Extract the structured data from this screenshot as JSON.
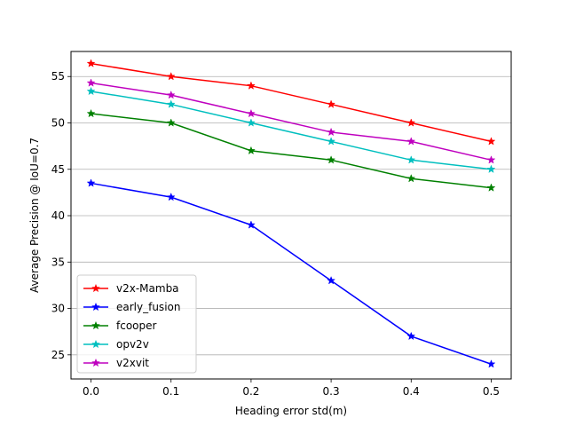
{
  "chart_data": {
    "type": "line",
    "title": "",
    "xlabel": "Heading error std(m)",
    "ylabel": "Average Precision @ IoU=0.7",
    "x": [
      0.0,
      0.1,
      0.2,
      0.3,
      0.4,
      0.5
    ],
    "x_tick_labels": [
      "0.0",
      "0.1",
      "0.2",
      "0.3",
      "0.4",
      "0.5"
    ],
    "y_ticks": [
      25,
      30,
      35,
      40,
      45,
      50,
      55
    ],
    "y_tick_labels": [
      "25",
      "30",
      "35",
      "40",
      "45",
      "50",
      "55"
    ],
    "xlim": [
      -0.025,
      0.525
    ],
    "ylim": [
      22.4,
      57.7
    ],
    "grid": "horizontal",
    "legend_position": "lower-left",
    "series": [
      {
        "name": "v2x-Mamba",
        "color": "#ff0000",
        "marker": "star",
        "values": [
          56.4,
          55.0,
          54.0,
          52.0,
          50.0,
          48.0
        ]
      },
      {
        "name": "early_fusion",
        "color": "#0000ff",
        "marker": "star",
        "values": [
          43.5,
          42.0,
          39.0,
          33.0,
          27.0,
          24.0
        ]
      },
      {
        "name": "fcooper",
        "color": "#008000",
        "marker": "star",
        "values": [
          51.0,
          50.0,
          47.0,
          46.0,
          44.0,
          43.0
        ]
      },
      {
        "name": "opv2v",
        "color": "#00bfbf",
        "marker": "star",
        "values": [
          53.4,
          52.0,
          50.0,
          48.0,
          46.0,
          45.0
        ]
      },
      {
        "name": "v2xvit",
        "color": "#bf00bf",
        "marker": "star",
        "values": [
          54.3,
          53.0,
          51.0,
          49.0,
          48.0,
          46.0
        ]
      }
    ]
  }
}
